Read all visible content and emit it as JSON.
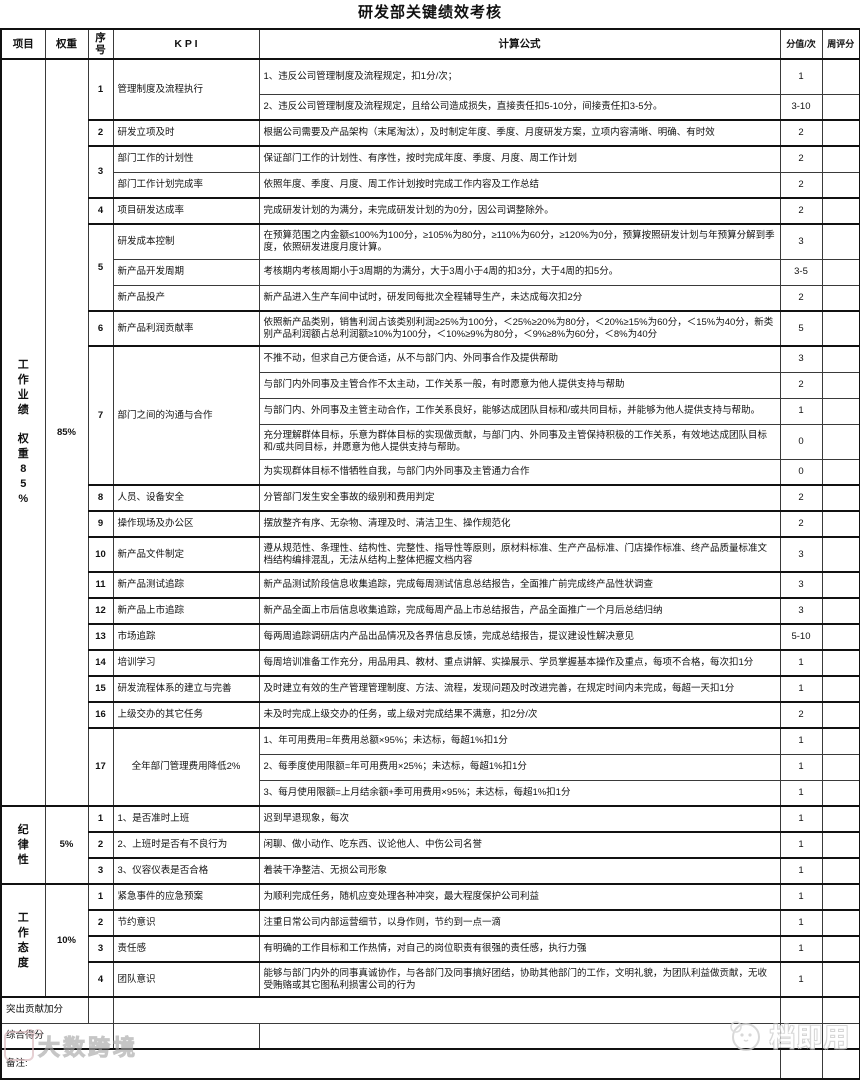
{
  "title": "研发部关键绩效考核",
  "header": {
    "project": "项目",
    "weight": "权重",
    "no": "序号",
    "kpi": "K P I",
    "formula": "计算公式",
    "score": "分值/次",
    "week": "周评分"
  },
  "sections": [
    {
      "project": "工作业绩",
      "project2": "权重85%",
      "weight": "85%",
      "groups": [
        {
          "no": "1",
          "items": [
            {
              "kpi": "管理制度及流程执行",
              "rows": [
                {
                  "text": "1、违反公司管理制度及流程规定，扣1分/次；",
                  "score": "1",
                  "tall": true
                },
                {
                  "text": "2、违反公司管理制度及流程规定，且给公司造成损失，直接责任扣5-10分，间接责任扣3-5分。",
                  "score": "3-10"
                }
              ]
            }
          ]
        },
        {
          "no": "2",
          "items": [
            {
              "kpi": "研发立项及时",
              "rows": [
                {
                  "text": "根据公司需要及产品架构（末尾淘汰），及时制定年度、季度、月度研发方案，立项内容清晰、明确、有时效",
                  "score": "2"
                }
              ]
            }
          ]
        },
        {
          "no": "3",
          "items": [
            {
              "kpi": "部门工作的计划性",
              "rows": [
                {
                  "text": "保证部门工作的计划性、有序性，按时完成年度、季度、月度、周工作计划",
                  "score": "2"
                }
              ]
            },
            {
              "kpi": "部门工作计划完成率",
              "rows": [
                {
                  "text": "依照年度、季度、月度、周工作计划按时完成工作内容及工作总结",
                  "score": "2"
                }
              ]
            }
          ]
        },
        {
          "no": "4",
          "items": [
            {
              "kpi": "项目研发达成率",
              "rows": [
                {
                  "text": "完成研发计划的为满分，未完成研发计划的为0分，因公司调整除外。",
                  "score": "2"
                }
              ]
            }
          ]
        },
        {
          "no": "5",
          "items": [
            {
              "kpi": "研发成本控制",
              "rows": [
                {
                  "text": "在预算范围之内金额≤100%为100分，≥105%为80分，≥110%为60分，≥120%为0分，预算按照研发计划与年预算分解到季度，依照研发进度月度计算。",
                  "score": "3",
                  "tall": true
                }
              ]
            },
            {
              "kpi": "新产品开发周期",
              "rows": [
                {
                  "text": "考核期内考核周期小于3周期的为满分，大于3周小于4周的扣3分，大于4周的扣5分。",
                  "score": "3-5"
                }
              ]
            },
            {
              "kpi": "新产品投产",
              "rows": [
                {
                  "text": "新产品进入生产车间中试时，研发同每批次全程辅导生产，未达成每次扣2分",
                  "score": "2"
                }
              ]
            }
          ]
        },
        {
          "no": "6",
          "items": [
            {
              "kpi": "新产品利润贡献率",
              "rows": [
                {
                  "text": "依照新产品类别，销售利润占该类别利润≥25%为100分，＜25%≥20%为80分，＜20%≥15%为60分，＜15%为40分，新类别产品利润额占总利润额≥10%为100分，＜10%≥9%为80分，＜9%≥8%为60分，＜8%为40分",
                  "score": "5",
                  "tall": true
                }
              ]
            }
          ]
        },
        {
          "no": "7",
          "items": [
            {
              "kpi": "部门之间的沟通与合作",
              "rows": [
                {
                  "text": "不推不动，但求自己方便合适，从不与部门内、外同事合作及提供帮助",
                  "score": "3"
                },
                {
                  "text": "与部门内外同事及主管合作不太主动，工作关系一般，有时愿意为他人提供支持与帮助",
                  "score": "2"
                },
                {
                  "text": "与部门内、外同事及主管主动合作，工作关系良好，能够达成团队目标和/或共同目标，并能够为他人提供支持与帮助。",
                  "score": "1"
                },
                {
                  "text": "充分理解群体目标，乐意为群体目标的实现做贡献，与部门内、外同事及主管保持积极的工作关系，有效地达成团队目标和/或共同目标，并愿意为他人提供支持与帮助。",
                  "score": "0",
                  "tall": true
                },
                {
                  "text": "为实现群体目标不惜牺牲自我，与部门内外同事及主管通力合作",
                  "score": "0"
                }
              ]
            }
          ]
        },
        {
          "no": "8",
          "items": [
            {
              "kpi": "人员、设备安全",
              "rows": [
                {
                  "text": "分管部门发生安全事故的级别和费用判定",
                  "score": "2"
                }
              ]
            }
          ]
        },
        {
          "no": "9",
          "items": [
            {
              "kpi": "操作现场及办公区",
              "rows": [
                {
                  "text": "摆放整齐有序、无杂物、清理及时、清洁卫生、操作规范化",
                  "score": "2"
                }
              ]
            }
          ]
        },
        {
          "no": "10",
          "items": [
            {
              "kpi": "新产品文件制定",
              "rows": [
                {
                  "text": "遵从规范性、条理性、结构性、完整性、指导性等原则，原材料标准、生产产品标准、门店操作标准、终产品质量标准文档结构编排混乱，无法从结构上整体把握文档内容",
                  "score": "3",
                  "tall": true
                }
              ]
            }
          ]
        },
        {
          "no": "11",
          "items": [
            {
              "kpi": "新产品测试追踪",
              "rows": [
                {
                  "text": "新产品测试阶段信息收集追踪，完成每周测试信息总结报告，全面推广前完成终产品性状调查",
                  "score": "3"
                }
              ]
            }
          ]
        },
        {
          "no": "12",
          "items": [
            {
              "kpi": "新产品上市追踪",
              "rows": [
                {
                  "text": "新产品全面上市后信息收集追踪，完成每周产品上市总结报告，产品全面推广一个月后总结归纳",
                  "score": "3"
                }
              ]
            }
          ]
        },
        {
          "no": "13",
          "items": [
            {
              "kpi": "市场追踪",
              "rows": [
                {
                  "text": "每两周追踪调研店内产品出品情况及各界信息反馈，完成总结报告，提议建设性解决意见",
                  "score": "5-10"
                }
              ]
            }
          ]
        },
        {
          "no": "14",
          "items": [
            {
              "kpi": "培训学习",
              "rows": [
                {
                  "text": "每周培训准备工作充分，用品用具、教材、重点讲解、实操展示、学员掌握基本操作及重点，每项不合格，每次扣1分",
                  "score": "1"
                }
              ]
            }
          ]
        },
        {
          "no": "15",
          "items": [
            {
              "kpi": "研发流程体系的建立与完善",
              "rows": [
                {
                  "text": "及时建立有效的生产管理管理制度、方法、流程，发现问题及时改进完善，在规定时间内未完成，每超一天扣1分",
                  "score": "1"
                }
              ]
            }
          ]
        },
        {
          "no": "16",
          "items": [
            {
              "kpi": "上级交办的其它任务",
              "rows": [
                {
                  "text": "未及时完成上级交办的任务，或上级对完成结果不满意，扣2分/次",
                  "score": "2"
                }
              ]
            }
          ]
        },
        {
          "no": "17",
          "items": [
            {
              "kpi": "全年部门管理费用降低2%",
              "center": true,
              "rows": [
                {
                  "text": "1、年可用费用=年费用总额×95%；未达标，每超1%扣1分",
                  "score": "1"
                },
                {
                  "text": "2、每季度使用限额=年可用费用×25%；未达标，每超1%扣1分",
                  "score": "1"
                },
                {
                  "text": "3、每月使用限额=上月结余额+季可用费用×95%；未达标，每超1%扣1分",
                  "score": "1"
                }
              ]
            }
          ]
        }
      ]
    },
    {
      "project": "纪律性",
      "project2": "",
      "weight": "5%",
      "groups": [
        {
          "no": "1",
          "items": [
            {
              "kpi": "1、是否准时上班",
              "rows": [
                {
                  "text": "迟到早退现象，每次",
                  "score": "1"
                }
              ]
            }
          ]
        },
        {
          "no": "2",
          "items": [
            {
              "kpi": "2、上班时是否有不良行为",
              "rows": [
                {
                  "text": "闲聊、做小动作、吃东西、议论他人、中伤公司名誉",
                  "score": "1"
                }
              ]
            }
          ]
        },
        {
          "no": "3",
          "items": [
            {
              "kpi": "3、仪容仪表是否合格",
              "rows": [
                {
                  "text": "着装干净整洁、无损公司形象",
                  "score": "1"
                }
              ]
            }
          ]
        }
      ]
    },
    {
      "project": "工作态度",
      "project2": "",
      "weight": "10%",
      "groups": [
        {
          "no": "1",
          "items": [
            {
              "kpi": "紧急事件的应急预案",
              "rows": [
                {
                  "text": "为顺利完成任务，随机应变处理各种冲突，最大程度保护公司利益",
                  "score": "1"
                }
              ]
            }
          ]
        },
        {
          "no": "2",
          "items": [
            {
              "kpi": "节约意识",
              "rows": [
                {
                  "text": "注重日常公司内部运营细节，以身作则，节约到一点一滴",
                  "score": "1"
                }
              ]
            }
          ]
        },
        {
          "no": "3",
          "items": [
            {
              "kpi": "责任感",
              "rows": [
                {
                  "text": "有明确的工作目标和工作热情，对自己的岗位职责有很强的责任感，执行力强",
                  "score": "1"
                }
              ]
            }
          ]
        },
        {
          "no": "4",
          "items": [
            {
              "kpi": "团队意识",
              "rows": [
                {
                  "text": "能够与部门内外的同事真诚协作，与各部门及同事搞好团结，协助其他部门的工作，文明礼貌，为团队利益做贡献，无收受贿赂或其它图私利损害公司的行为",
                  "score": "1",
                  "tall": true
                }
              ]
            }
          ]
        }
      ]
    }
  ],
  "footer": {
    "bonus_label": "突出贡献加分",
    "total_label": "综合得分",
    "remark_label": "备注:"
  },
  "watermarks": {
    "bottom_left": "大数跨境",
    "bottom_right": "档即用"
  }
}
